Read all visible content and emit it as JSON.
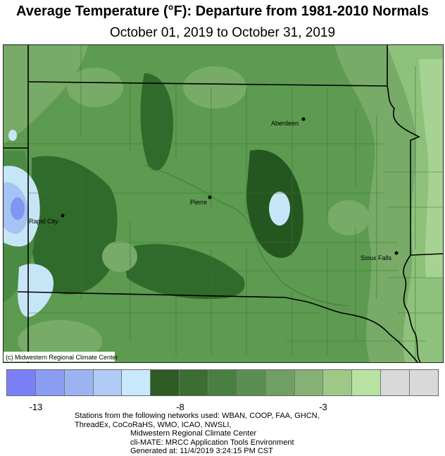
{
  "title": "Average Temperature (°F): Departure from 1981-2010 Normals",
  "subtitle": "October 01, 2019 to October 31, 2019",
  "map": {
    "cities": [
      {
        "name": "Aberdeen"
      },
      {
        "name": "Pierre"
      },
      {
        "name": "Rapid City"
      },
      {
        "name": "Sioux Falls"
      }
    ],
    "credit": "(c) Midwestern Regional Climate Center",
    "colors": {
      "base": "#5c9b50",
      "dark": "#2f6b2a",
      "darker": "#24561f",
      "mid": "#4b8a42",
      "light": "#77ab67",
      "lighter": "#8ec27b",
      "pale": "#a6d394",
      "cold1": "#c6e6f8",
      "cold2": "#a5c4f4",
      "cold3": "#7f96f2",
      "border": "#000000",
      "county": "#3a7435"
    }
  },
  "legend": {
    "colors": [
      "#7b7ff7",
      "#8b9cf3",
      "#9cb3f3",
      "#afcaf5",
      "#c7e9fb",
      "#2e5c24",
      "#3c6e33",
      "#4a7f42",
      "#5b8f51",
      "#6f9f62",
      "#85b174",
      "#9dc886",
      "#b7e2a2",
      "#d9d9d9",
      "#d9d9d9"
    ],
    "labels": [
      "-13",
      "-8",
      "-3"
    ]
  },
  "footer": {
    "line1": "Stations from the following networks used: WBAN, COOP, FAA, GHCN,",
    "line2": "ThreadEx, CoCoRaHS, WMO, ICAO, NWSLI,",
    "line3": "Midwestern Regional Climate Center",
    "line4": "cli-MATE: MRCC Application Tools Environment",
    "line5": "Generated at: 11/4/2019 3:24:15 PM CST"
  }
}
